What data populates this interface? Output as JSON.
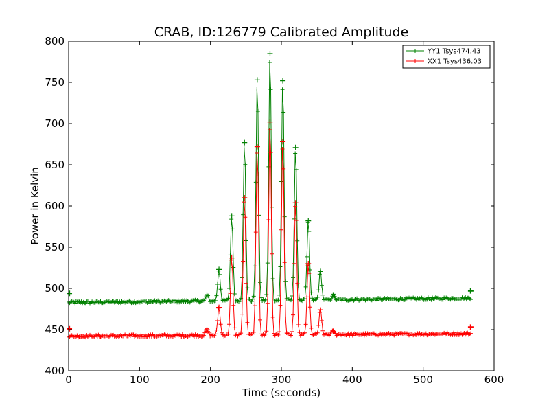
{
  "chart_data": {
    "type": "line",
    "title": "CRAB, ID:126779 Calibrated Amplitude",
    "xlabel": "Time (seconds)",
    "ylabel": "Power in Kelvin",
    "xlim": [
      0,
      600
    ],
    "ylim": [
      400,
      800
    ],
    "xticks": [
      0,
      100,
      200,
      300,
      400,
      500,
      600
    ],
    "yticks": [
      400,
      450,
      500,
      550,
      600,
      650,
      700,
      750,
      800
    ],
    "grid": false,
    "legend_position": "top-right",
    "marker": "plus",
    "series": [
      {
        "name": "YY1 Tsys474.43",
        "color": "#008000",
        "baseline_start": 483,
        "baseline_end": 488,
        "x_start": 0,
        "x_end": 567,
        "step": 1.5,
        "peaks": [
          {
            "x": 195,
            "y": 492
          },
          {
            "x": 212,
            "y": 523
          },
          {
            "x": 230,
            "y": 588
          },
          {
            "x": 248,
            "y": 677
          },
          {
            "x": 266,
            "y": 753
          },
          {
            "x": 284,
            "y": 785
          },
          {
            "x": 302,
            "y": 752
          },
          {
            "x": 320,
            "y": 671
          },
          {
            "x": 338,
            "y": 582
          },
          {
            "x": 355,
            "y": 521
          },
          {
            "x": 373,
            "y": 492
          }
        ],
        "edge_points": [
          {
            "x": 1,
            "y": 494
          },
          {
            "x": 567,
            "y": 497
          }
        ]
      },
      {
        "name": "XX1 Tsys436.03",
        "color": "#ff0000",
        "baseline_start": 442,
        "baseline_end": 445,
        "x_start": 0,
        "x_end": 567,
        "step": 1.5,
        "peaks": [
          {
            "x": 195,
            "y": 450
          },
          {
            "x": 212,
            "y": 477
          },
          {
            "x": 230,
            "y": 537
          },
          {
            "x": 248,
            "y": 610
          },
          {
            "x": 266,
            "y": 672
          },
          {
            "x": 284,
            "y": 702
          },
          {
            "x": 302,
            "y": 678
          },
          {
            "x": 320,
            "y": 604
          },
          {
            "x": 338,
            "y": 530
          },
          {
            "x": 355,
            "y": 474
          },
          {
            "x": 373,
            "y": 448
          }
        ],
        "edge_points": [
          {
            "x": 1,
            "y": 451
          },
          {
            "x": 567,
            "y": 453
          }
        ]
      }
    ]
  }
}
